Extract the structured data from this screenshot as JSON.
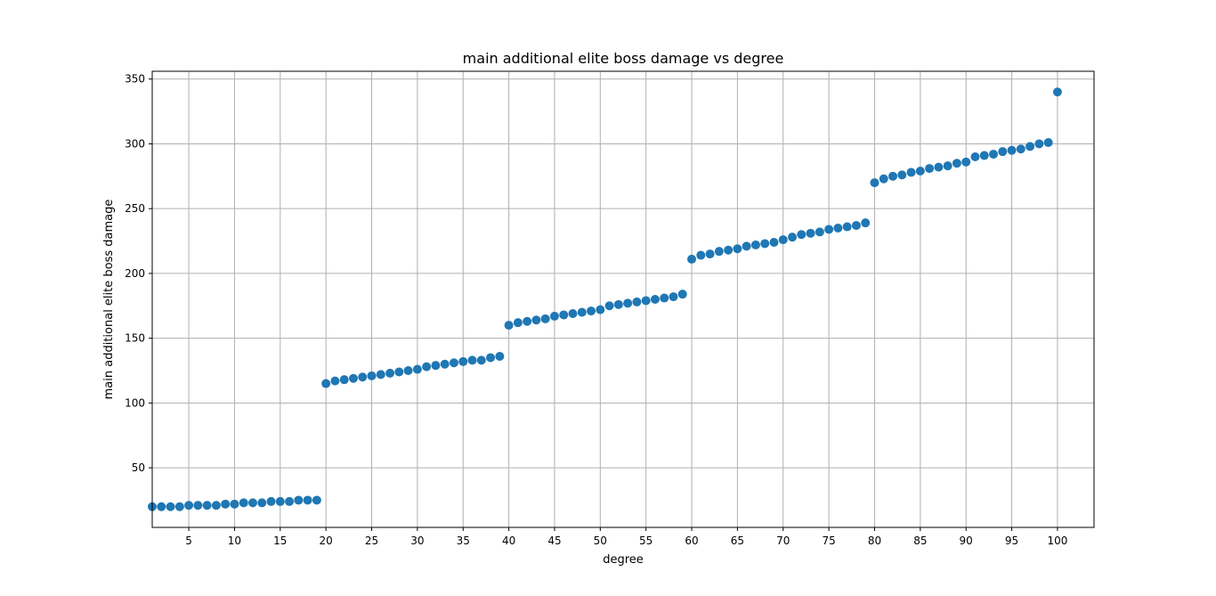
{
  "chart_data": {
    "type": "scatter",
    "title": "main additional elite boss damage vs degree",
    "xlabel": "degree",
    "ylabel": "main additional elite boss damage",
    "xlim": [
      1,
      104
    ],
    "ylim": [
      4,
      356
    ],
    "xticks": [
      5,
      10,
      15,
      20,
      25,
      30,
      35,
      40,
      45,
      50,
      55,
      60,
      65,
      70,
      75,
      80,
      85,
      90,
      95,
      100
    ],
    "yticks": [
      50,
      100,
      150,
      200,
      250,
      300,
      350
    ],
    "grid": true,
    "marker_color": "#1f77b4",
    "x": [
      1,
      2,
      3,
      4,
      5,
      6,
      7,
      8,
      9,
      10,
      11,
      12,
      13,
      14,
      15,
      16,
      17,
      18,
      19,
      20,
      21,
      22,
      23,
      24,
      25,
      26,
      27,
      28,
      29,
      30,
      31,
      32,
      33,
      34,
      35,
      36,
      37,
      38,
      39,
      40,
      41,
      42,
      43,
      44,
      45,
      46,
      47,
      48,
      49,
      50,
      51,
      52,
      53,
      54,
      55,
      56,
      57,
      58,
      59,
      60,
      61,
      62,
      63,
      64,
      65,
      66,
      67,
      68,
      69,
      70,
      71,
      72,
      73,
      74,
      75,
      76,
      77,
      78,
      79,
      80,
      81,
      82,
      83,
      84,
      85,
      86,
      87,
      88,
      89,
      90,
      91,
      92,
      93,
      94,
      95,
      96,
      97,
      98,
      99,
      100
    ],
    "y": [
      20,
      20,
      20,
      20,
      21,
      21,
      21,
      21,
      22,
      22,
      23,
      23,
      23,
      24,
      24,
      24,
      25,
      25,
      25,
      115,
      117,
      118,
      119,
      120,
      121,
      122,
      123,
      124,
      125,
      126,
      128,
      129,
      130,
      131,
      132,
      133,
      133,
      135,
      136,
      160,
      162,
      163,
      164,
      165,
      167,
      168,
      169,
      170,
      171,
      172,
      175,
      176,
      177,
      178,
      179,
      180,
      181,
      182,
      184,
      211,
      214,
      215,
      217,
      218,
      219,
      221,
      222,
      223,
      224,
      226,
      228,
      230,
      231,
      232,
      234,
      235,
      236,
      237,
      239,
      270,
      273,
      275,
      276,
      278,
      279,
      281,
      282,
      283,
      285,
      286,
      290,
      291,
      292,
      294,
      295,
      296,
      298,
      300,
      301,
      340
    ]
  }
}
